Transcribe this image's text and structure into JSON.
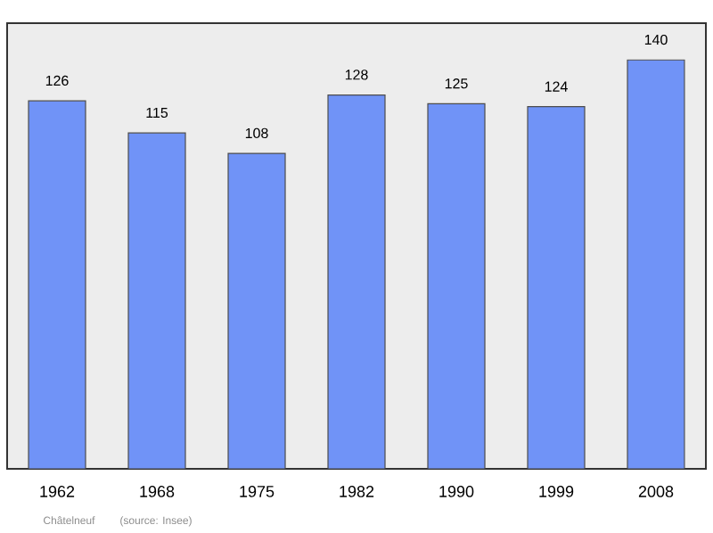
{
  "chart_data": {
    "type": "bar",
    "categories": [
      "1962",
      "1968",
      "1975",
      "1982",
      "1990",
      "1999",
      "2008"
    ],
    "values": [
      126,
      115,
      108,
      128,
      125,
      124,
      140
    ],
    "color": "#7093f7",
    "data_labels": true,
    "annotations": [
      "Châtelneuf",
      "(source: Insee)"
    ]
  }
}
